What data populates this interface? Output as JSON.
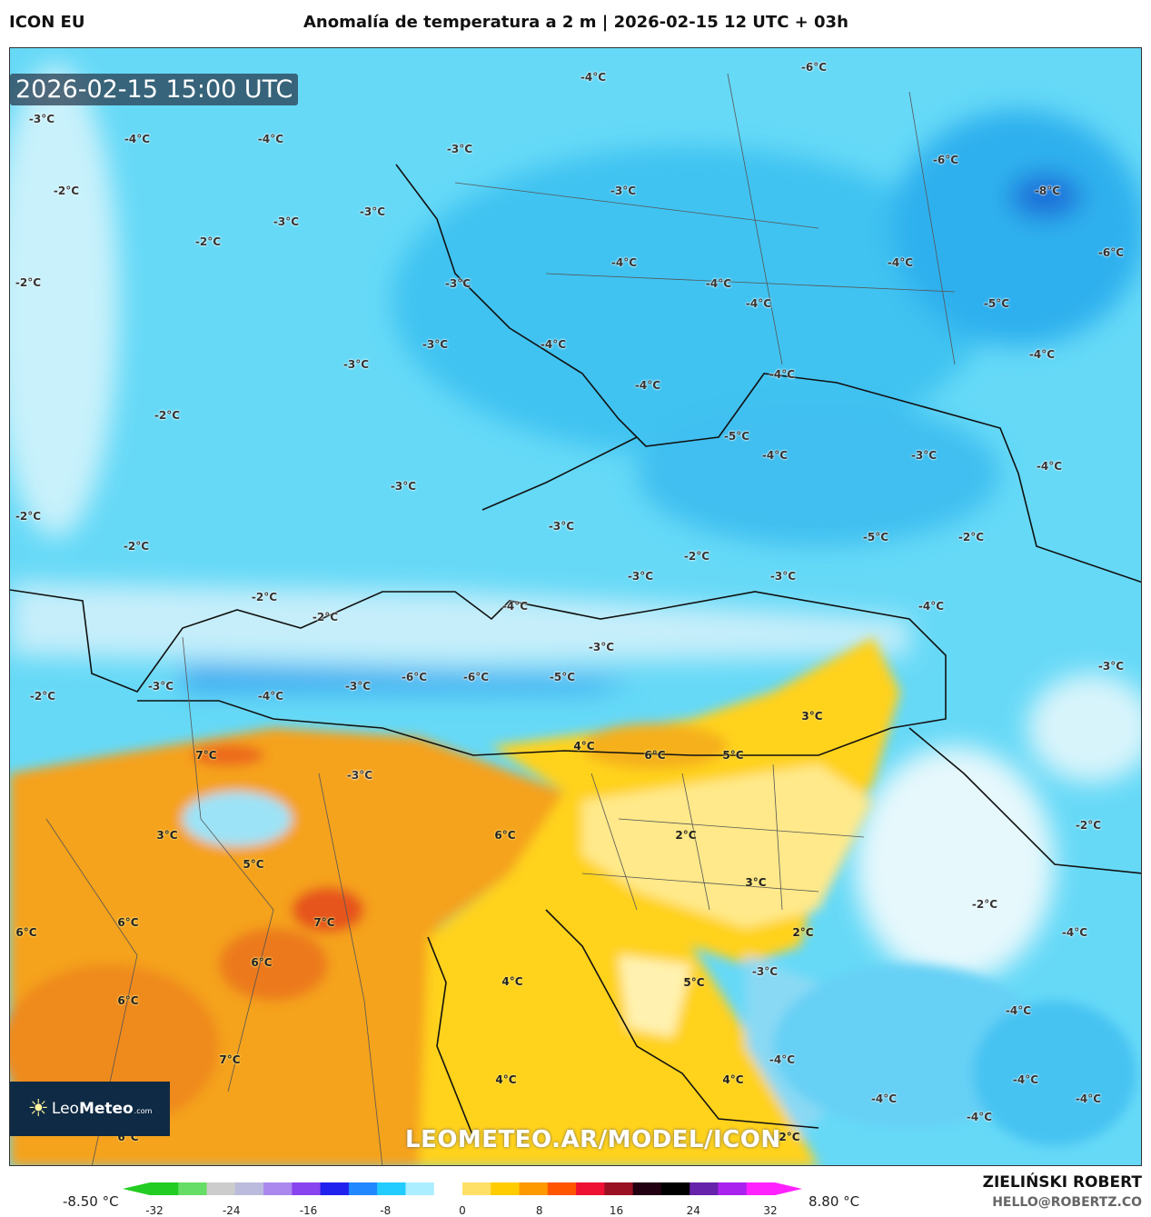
{
  "header": {
    "model": "ICON EU",
    "title": "Anomalía de temperatura a 2 m | 2026-02-15 12 UTC + 03h"
  },
  "map": {
    "valid_time": "2026-02-15 15:00 UTC",
    "logo": {
      "brand_light": "Leo",
      "brand_bold": "Meteo",
      "brand_suffix": ".com"
    },
    "watermark": "LEOMETEO.AR/MODEL/ICON",
    "contour_labels": [
      "-4°C",
      "-6°C",
      "-3°C",
      "-4°C",
      "-4°C",
      "-3°C",
      "-6°C",
      "-8°C",
      "-2°C",
      "-3°C",
      "-3°C",
      "-3°C",
      "-2°C",
      "-6°C",
      "-4°C",
      "-4°C",
      "-2°C",
      "-3°C",
      "-4°C",
      "-4°C",
      "-5°C",
      "-3°C",
      "-4°C",
      "-4°C",
      "-3°C",
      "-4°C",
      "-4°C",
      "-2°C",
      "-5°C",
      "-4°C",
      "-3°C",
      "-4°C",
      "-3°C",
      "-2°C",
      "-3°C",
      "-5°C",
      "-2°C",
      "-2°C",
      "-2°C",
      "-3°C",
      "-3°C",
      "-2°C",
      "-4°C",
      "-4°C",
      "-2°C",
      "-3°C",
      "-6°C",
      "-6°C",
      "-5°C",
      "-3°C",
      "-3°C",
      "-3°C",
      "-2°C",
      "-4°C",
      "3°C",
      "4°C",
      "7°C",
      "6°C",
      "5°C",
      "-3°C",
      "-2°C",
      "3°C",
      "6°C",
      "2°C",
      "5°C",
      "3°C",
      "-2°C",
      "6°C",
      "6°C",
      "7°C",
      "2°C",
      "-4°C",
      "6°C",
      "5°C",
      "-3°C",
      "4°C",
      "6°C",
      "-4°C",
      "-4°C",
      "7°C",
      "4°C",
      "4°C",
      "-4°C",
      "-4°C",
      "-4°C",
      "-4°C",
      "6°C",
      "2°C"
    ]
  },
  "colorbar": {
    "min_label": "-8.50 °C",
    "max_label": "8.80 °C",
    "ticks": [
      "-32",
      "-24",
      "-16",
      "-8",
      "0",
      "8",
      "16",
      "24",
      "32"
    ],
    "colors": [
      "#22cc22",
      "#66dd66",
      "#cccccc",
      "#bbbbdd",
      "#aa88ee",
      "#8844ee",
      "#2222ee",
      "#2288ff",
      "#22ccff",
      "#aaeeff",
      "#ffffff",
      "#ffe066",
      "#ffcc00",
      "#ff9900",
      "#ff5500",
      "#ee1133",
      "#991122",
      "#220011",
      "#000000",
      "#6622aa",
      "#aa22ee",
      "#ff22ff"
    ]
  },
  "footer": {
    "author": "ZIELIŃSKI ROBERT",
    "email": "HELLO@ROBERTZ.CO"
  },
  "palette": {
    "cold": "#66d9f7",
    "cold_dark": "#2fb4ee",
    "very_cold": "#1a7fe0",
    "neutral": "#e8f8fd",
    "warm": "#ffd21f",
    "warmer": "#f5a21c",
    "hot": "#ec7a1a"
  }
}
